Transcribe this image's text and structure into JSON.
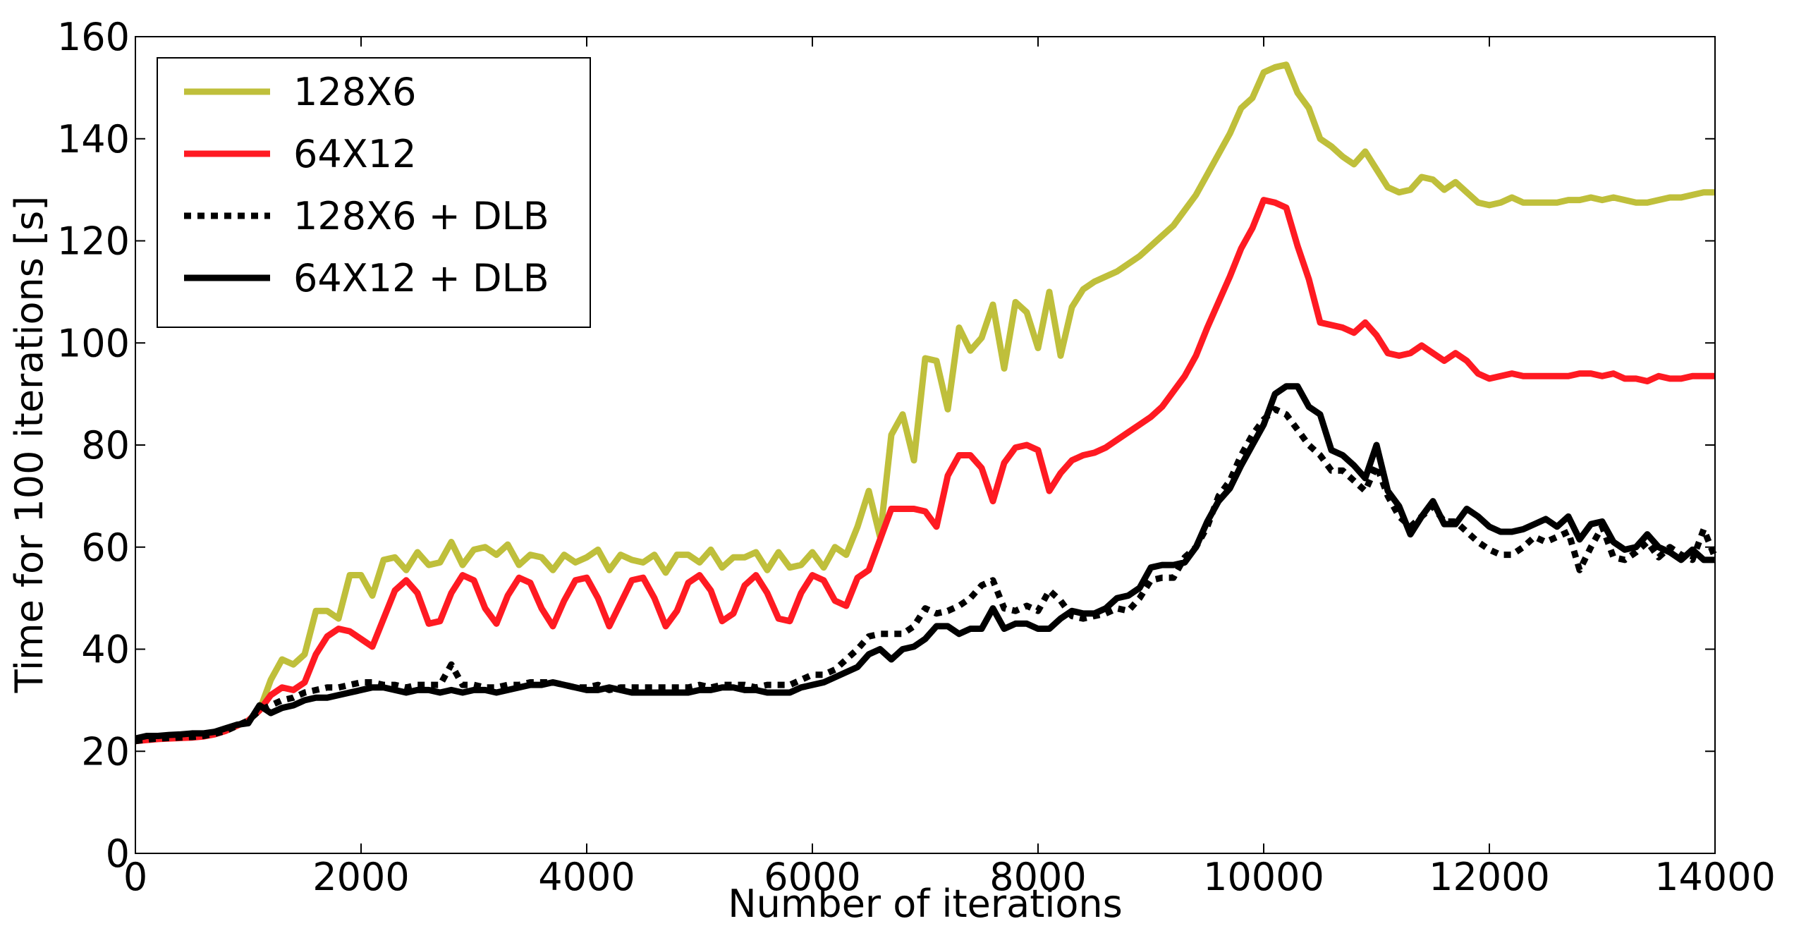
{
  "chart_data": {
    "type": "line",
    "xlabel": "Number of iterations",
    "ylabel": "Time for 100 iterations [s]",
    "xlim": [
      0,
      14000
    ],
    "ylim": [
      0,
      160
    ],
    "xticks": [
      0,
      2000,
      4000,
      6000,
      8000,
      10000,
      12000,
      14000
    ],
    "yticks": [
      0,
      20,
      40,
      60,
      80,
      100,
      120,
      140,
      160
    ],
    "grid": false,
    "legend": "upper left",
    "x": [
      0,
      100,
      200,
      300,
      400,
      500,
      600,
      700,
      800,
      900,
      1000,
      1100,
      1200,
      1300,
      1400,
      1500,
      1600,
      1700,
      1800,
      1900,
      2000,
      2100,
      2200,
      2300,
      2400,
      2500,
      2600,
      2700,
      2800,
      2900,
      3000,
      3100,
      3200,
      3300,
      3400,
      3500,
      3600,
      3700,
      3800,
      3900,
      4000,
      4100,
      4200,
      4300,
      4400,
      4500,
      4600,
      4700,
      4800,
      4900,
      5000,
      5100,
      5200,
      5300,
      5400,
      5500,
      5600,
      5700,
      5800,
      5900,
      6000,
      6100,
      6200,
      6300,
      6400,
      6500,
      6600,
      6700,
      6800,
      6900,
      7000,
      7100,
      7200,
      7300,
      7400,
      7500,
      7600,
      7700,
      7800,
      7900,
      8000,
      8100,
      8200,
      8300,
      8400,
      8500,
      8600,
      8700,
      8800,
      8900,
      9000,
      9100,
      9200,
      9300,
      9400,
      9500,
      9600,
      9700,
      9800,
      9900,
      10000,
      10100,
      10200,
      10300,
      10400,
      10500,
      10600,
      10700,
      10800,
      10900,
      11000,
      11100,
      11200,
      11300,
      11400,
      11500,
      11600,
      11700,
      11800,
      11900,
      12000,
      12100,
      12200,
      12300,
      12400,
      12500,
      12600,
      12700,
      12800,
      12900,
      13000,
      13100,
      13200,
      13300,
      13400,
      13500,
      13600,
      13700,
      13800,
      13900,
      14000
    ],
    "series": [
      {
        "name": "128X6",
        "color": "#bfbf3b",
        "linestyle": "solid",
        "values": [
          22,
          22.3,
          22.5,
          22.6,
          22.7,
          22.8,
          23,
          23.5,
          24,
          25,
          26,
          28,
          34,
          38,
          37,
          39,
          47.5,
          47.5,
          46,
          54.5,
          54.5,
          50.5,
          57.5,
          58,
          55.5,
          59,
          56.5,
          57,
          61,
          56.5,
          59.5,
          60,
          58.5,
          60.5,
          56.5,
          58.5,
          58,
          55.5,
          58.5,
          57,
          58,
          59.5,
          55.5,
          58.5,
          57.5,
          57,
          58.5,
          55,
          58.5,
          58.5,
          57,
          59.5,
          56,
          58,
          58,
          59,
          55.5,
          59,
          56,
          56.5,
          59,
          56,
          60,
          58.5,
          64,
          71,
          62,
          82,
          86,
          77,
          97,
          96.5,
          87,
          103,
          98.5,
          101,
          107.5,
          95,
          108,
          106,
          99,
          110,
          97.5,
          107,
          110.5,
          112,
          113,
          114,
          115.5,
          117,
          119,
          121,
          123,
          126,
          129,
          133,
          137,
          141,
          146,
          148,
          153,
          154,
          154.5,
          149,
          146,
          140,
          138.5,
          136.5,
          135,
          137.5,
          134,
          130.5,
          129.5,
          130,
          132.5,
          132,
          130,
          131.5,
          129.5,
          127.5,
          127,
          127.5,
          128.5,
          127.5,
          127.5,
          127.5,
          127.5,
          128,
          128,
          128.5,
          128,
          128.5,
          128,
          127.5,
          127.5,
          128,
          128.5,
          128.5,
          129,
          129.5,
          129.5
        ]
      },
      {
        "name": "64X12",
        "color": "#ff1a22",
        "linestyle": "solid",
        "values": [
          22,
          22.2,
          22.4,
          22.5,
          22.6,
          22.7,
          22.9,
          23.3,
          24,
          25,
          26,
          28,
          31,
          32.5,
          32,
          33.5,
          39,
          42.5,
          44,
          43.5,
          42,
          40.5,
          46,
          51.5,
          53.5,
          51,
          45,
          45.5,
          51,
          54.5,
          53.5,
          48,
          45,
          50.5,
          54,
          53,
          48,
          44.5,
          49.5,
          53.5,
          54,
          50,
          44.5,
          49,
          53.5,
          54,
          50,
          44.5,
          47.5,
          53,
          54.5,
          51.5,
          45.5,
          47,
          52.5,
          54.5,
          51,
          46,
          45.5,
          51,
          54.5,
          53.5,
          49.5,
          48.5,
          54,
          55.5,
          61.5,
          67.5,
          67.5,
          67.5,
          67,
          64,
          74,
          78,
          78,
          75.5,
          69,
          76.5,
          79.5,
          80,
          79,
          71,
          74.5,
          77,
          78,
          78.5,
          79.5,
          81,
          82.5,
          84,
          85.5,
          87.5,
          90.5,
          93.5,
          97.5,
          103,
          108,
          113,
          118.5,
          122.5,
          128,
          127.5,
          126.5,
          119,
          112.5,
          104,
          103.5,
          103,
          102,
          104,
          101.5,
          98,
          97.5,
          98,
          99.5,
          98,
          96.5,
          98,
          96.5,
          94,
          93,
          93.5,
          94,
          93.5,
          93.5,
          93.5,
          93.5,
          93.5,
          94,
          94,
          93.5,
          94,
          93,
          93,
          92.5,
          93.5,
          93,
          93,
          93.5,
          93.5,
          93.5
        ]
      },
      {
        "name": "128X6 + DLB",
        "color": "#000000",
        "linestyle": "dotted",
        "values": [
          22,
          22.3,
          22.5,
          22.6,
          22.7,
          22.8,
          23,
          23.4,
          24,
          25,
          26,
          28,
          29,
          30,
          30.5,
          31.5,
          32,
          32.5,
          32.5,
          33,
          33.5,
          33.5,
          33,
          33,
          32.5,
          33,
          33,
          33,
          37,
          33,
          33,
          32.5,
          32.5,
          33,
          33,
          33.5,
          33.5,
          33.5,
          33,
          32.5,
          32.5,
          33,
          32,
          32.5,
          32.5,
          32.5,
          32.5,
          32.5,
          32.5,
          32.5,
          33,
          32.5,
          33,
          33,
          33,
          32.5,
          33,
          33,
          33,
          34,
          35,
          35,
          36,
          38,
          40,
          42.5,
          43,
          43,
          43,
          44.5,
          48,
          47,
          47.5,
          48.5,
          50,
          52.5,
          53.5,
          48,
          47.5,
          48.5,
          47.5,
          51.5,
          49.5,
          46.5,
          46,
          46.5,
          47,
          48,
          47.5,
          50,
          53.5,
          54,
          54,
          58,
          60,
          64,
          70,
          73,
          78,
          82,
          85,
          87,
          86,
          83,
          80,
          78,
          75,
          75,
          73,
          71,
          76,
          70,
          66,
          64,
          66,
          68,
          65,
          65,
          63,
          61,
          59.5,
          58.5,
          58.5,
          60,
          62,
          61,
          62,
          63,
          55.5,
          60,
          64,
          58,
          57.5,
          59,
          61,
          58,
          60,
          58.5,
          57.5,
          63.5,
          58
        ]
      },
      {
        "name": "64X12 + DLB",
        "color": "#000000",
        "linestyle": "solid",
        "values": [
          22.5,
          23,
          23,
          23.2,
          23.3,
          23.5,
          23.5,
          23.8,
          24.5,
          25.2,
          25.5,
          29,
          27.5,
          28.5,
          29,
          30,
          30.5,
          30.5,
          31,
          31.5,
          32,
          32.5,
          32.5,
          32,
          31.5,
          32,
          32,
          31.5,
          32,
          31.5,
          32,
          32,
          31.5,
          32,
          32.5,
          33,
          33,
          33.5,
          33,
          32.5,
          32,
          32,
          32.5,
          32,
          31.5,
          31.5,
          31.5,
          31.5,
          31.5,
          31.5,
          32,
          32,
          32.5,
          32.5,
          32,
          32,
          31.5,
          31.5,
          31.5,
          32.5,
          33,
          33.5,
          34.5,
          35.5,
          36.5,
          39,
          40,
          38,
          40,
          40.5,
          42,
          44.5,
          44.5,
          43,
          44,
          44,
          48,
          44,
          45,
          45,
          44,
          44,
          46,
          47.5,
          47,
          47,
          48,
          50,
          50.5,
          52,
          56,
          56.5,
          56.5,
          57,
          60,
          65,
          69,
          71.5,
          76,
          80,
          84,
          90,
          91.5,
          91.5,
          87.5,
          86,
          79,
          78,
          76,
          73.5,
          80,
          71,
          68,
          62.5,
          66,
          69,
          64.5,
          64.5,
          67.5,
          66,
          64,
          63,
          63,
          63.5,
          64.5,
          65.5,
          64,
          66,
          61.5,
          64.5,
          65,
          61,
          59.5,
          60,
          62.5,
          60,
          59,
          57.5,
          59.5,
          57.5,
          57.5
        ]
      }
    ]
  }
}
